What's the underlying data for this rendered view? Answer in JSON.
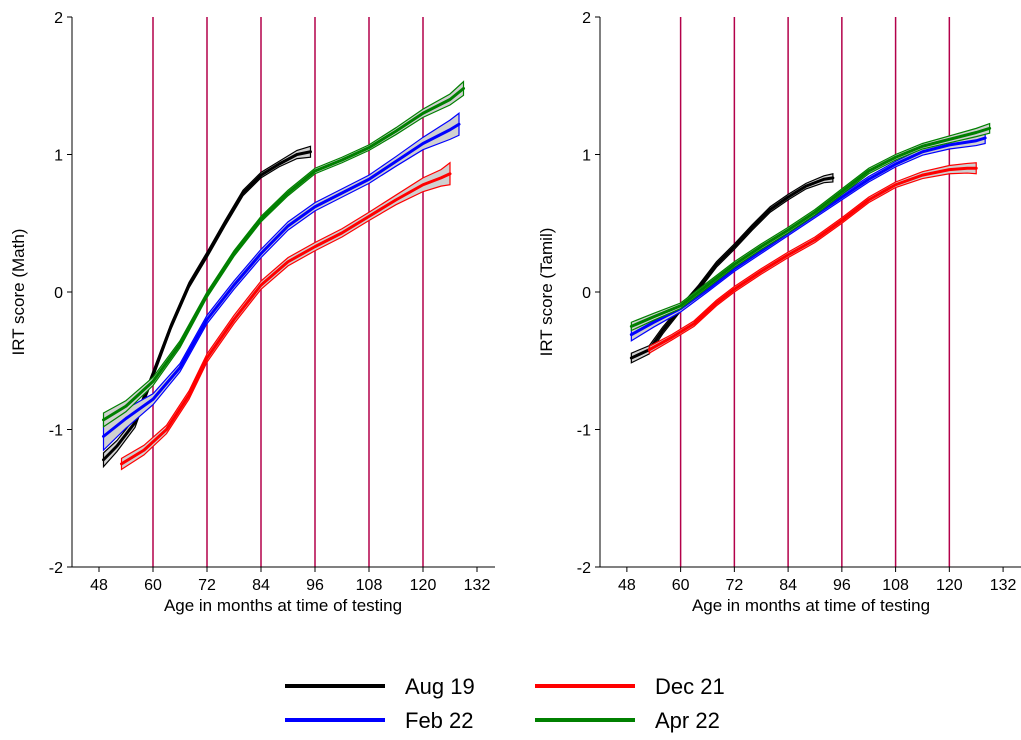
{
  "chart_data": [
    {
      "type": "line",
      "panel": "math",
      "xlabel": "Age in months at time of testing",
      "ylabel": "IRT score (Math)",
      "xlim": [
        42,
        136
      ],
      "ylim": [
        -2,
        2
      ],
      "x_ticks": [
        "48",
        "60",
        "72",
        "84",
        "96",
        "108",
        "120",
        "132"
      ],
      "y_ticks": [
        "-2",
        "-1",
        "0",
        "1",
        "2"
      ],
      "reference_lines_x": [
        60,
        72,
        84,
        96,
        108,
        120
      ],
      "grid": false,
      "band": "confidence band around each line",
      "series": [
        {
          "name": "Aug 19",
          "color": "#000000",
          "x": [
            49,
            52,
            56,
            60,
            64,
            68,
            72,
            76,
            80,
            84,
            88,
            92,
            95
          ],
          "y": [
            -1.22,
            -1.12,
            -0.95,
            -0.6,
            -0.25,
            0.05,
            0.27,
            0.5,
            0.72,
            0.85,
            0.93,
            1.0,
            1.02
          ],
          "band_halfwidth": [
            0.05,
            0.04,
            0.035,
            0.025,
            0.02,
            0.02,
            0.02,
            0.02,
            0.02,
            0.02,
            0.02,
            0.03,
            0.04
          ]
        },
        {
          "name": "Feb 22",
          "color": "#0000ff",
          "x": [
            49,
            54,
            60,
            66,
            72,
            78,
            84,
            90,
            96,
            102,
            108,
            114,
            120,
            126,
            128
          ],
          "y": [
            -1.05,
            -0.92,
            -0.78,
            -0.55,
            -0.2,
            0.05,
            0.28,
            0.48,
            0.62,
            0.72,
            0.82,
            0.95,
            1.08,
            1.18,
            1.22
          ],
          "band_halfwidth": [
            0.1,
            0.07,
            0.04,
            0.03,
            0.03,
            0.03,
            0.03,
            0.03,
            0.03,
            0.03,
            0.03,
            0.035,
            0.045,
            0.07,
            0.08
          ]
        },
        {
          "name": "Dec 21",
          "color": "#ff0000",
          "x": [
            53,
            58,
            63,
            68,
            72,
            78,
            84,
            90,
            96,
            102,
            108,
            114,
            120,
            124,
            126
          ],
          "y": [
            -1.25,
            -1.15,
            -1.0,
            -0.75,
            -0.48,
            -0.2,
            0.05,
            0.22,
            0.33,
            0.43,
            0.55,
            0.67,
            0.78,
            0.83,
            0.86
          ],
          "band_halfwidth": [
            0.04,
            0.035,
            0.03,
            0.03,
            0.03,
            0.03,
            0.03,
            0.03,
            0.03,
            0.03,
            0.03,
            0.035,
            0.05,
            0.06,
            0.08
          ]
        },
        {
          "name": "Apr 22",
          "color": "#008000",
          "x": [
            49,
            54,
            60,
            66,
            72,
            78,
            84,
            90,
            96,
            102,
            108,
            114,
            120,
            126,
            129
          ],
          "y": [
            -0.93,
            -0.83,
            -0.65,
            -0.38,
            -0.02,
            0.28,
            0.53,
            0.72,
            0.88,
            0.96,
            1.05,
            1.17,
            1.3,
            1.4,
            1.48
          ],
          "band_halfwidth": [
            0.05,
            0.04,
            0.03,
            0.025,
            0.02,
            0.02,
            0.02,
            0.02,
            0.02,
            0.02,
            0.02,
            0.025,
            0.03,
            0.04,
            0.05
          ]
        }
      ]
    },
    {
      "type": "line",
      "panel": "tamil",
      "xlabel": "Age in months at time of testing",
      "ylabel": "IRT score (Tamil)",
      "xlim": [
        42,
        136
      ],
      "ylim": [
        -2,
        2
      ],
      "x_ticks": [
        "48",
        "60",
        "72",
        "84",
        "96",
        "108",
        "120",
        "132"
      ],
      "y_ticks": [
        "-2",
        "-1",
        "0",
        "1",
        "2"
      ],
      "reference_lines_x": [
        60,
        72,
        84,
        96,
        108,
        120
      ],
      "grid": false,
      "band": "confidence band around each line",
      "series": [
        {
          "name": "Aug 19",
          "color": "#000000",
          "x": [
            49,
            53,
            56,
            60,
            64,
            68,
            72,
            76,
            80,
            84,
            88,
            92,
            94
          ],
          "y": [
            -0.48,
            -0.42,
            -0.28,
            -0.12,
            0.03,
            0.2,
            0.33,
            0.47,
            0.6,
            0.69,
            0.77,
            0.82,
            0.83
          ],
          "band_halfwidth": [
            0.035,
            0.03,
            0.025,
            0.02,
            0.02,
            0.02,
            0.02,
            0.02,
            0.02,
            0.02,
            0.02,
            0.025,
            0.03
          ]
        },
        {
          "name": "Feb 22",
          "color": "#0000ff",
          "x": [
            49,
            54,
            60,
            66,
            72,
            78,
            84,
            90,
            96,
            102,
            108,
            114,
            120,
            126,
            128
          ],
          "y": [
            -0.31,
            -0.22,
            -0.12,
            0.02,
            0.17,
            0.3,
            0.43,
            0.56,
            0.69,
            0.82,
            0.93,
            1.02,
            1.07,
            1.1,
            1.12
          ],
          "band_halfwidth": [
            0.045,
            0.035,
            0.025,
            0.02,
            0.02,
            0.02,
            0.02,
            0.02,
            0.02,
            0.02,
            0.02,
            0.025,
            0.03,
            0.035,
            0.04
          ]
        },
        {
          "name": "Dec 21",
          "color": "#ff0000",
          "x": [
            53,
            58,
            63,
            68,
            72,
            78,
            84,
            90,
            96,
            102,
            108,
            114,
            120,
            124,
            126
          ],
          "y": [
            -0.42,
            -0.33,
            -0.23,
            -0.08,
            0.02,
            0.15,
            0.27,
            0.38,
            0.52,
            0.67,
            0.78,
            0.85,
            0.89,
            0.9,
            0.9
          ],
          "band_halfwidth": [
            0.025,
            0.02,
            0.02,
            0.02,
            0.02,
            0.02,
            0.02,
            0.02,
            0.02,
            0.02,
            0.02,
            0.025,
            0.03,
            0.035,
            0.04
          ]
        },
        {
          "name": "Apr 22",
          "color": "#008000",
          "x": [
            49,
            54,
            60,
            66,
            72,
            78,
            84,
            90,
            96,
            102,
            108,
            114,
            120,
            126,
            129
          ],
          "y": [
            -0.25,
            -0.18,
            -0.1,
            0.05,
            0.2,
            0.33,
            0.45,
            0.58,
            0.73,
            0.88,
            0.98,
            1.06,
            1.11,
            1.16,
            1.19
          ],
          "band_halfwidth": [
            0.03,
            0.025,
            0.02,
            0.02,
            0.02,
            0.02,
            0.02,
            0.02,
            0.02,
            0.02,
            0.02,
            0.02,
            0.025,
            0.03,
            0.035
          ]
        }
      ]
    }
  ],
  "legend": {
    "placement": "bottom-center",
    "entries": [
      {
        "label": "Aug 19",
        "color": "#000000"
      },
      {
        "label": "Dec 21",
        "color": "#ff0000"
      },
      {
        "label": "Feb 22",
        "color": "#0000ff"
      },
      {
        "label": "Apr 22",
        "color": "#008000"
      }
    ]
  },
  "colors": {
    "reference_line": "#b3004a",
    "band_fill": "#d0d0d0",
    "axis": "#000000"
  }
}
